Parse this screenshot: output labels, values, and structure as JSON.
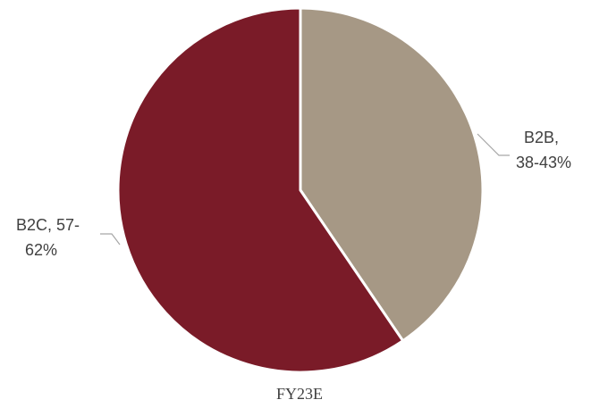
{
  "chart_data": {
    "type": "pie",
    "categories": [
      "B2B",
      "B2C"
    ],
    "series": [
      {
        "values": [
          40.5,
          59.5
        ]
      }
    ],
    "data_labels": [
      [
        "B2B,",
        "38-43%"
      ],
      [
        "B2C, 57-",
        "62%"
      ]
    ],
    "category_label": "FY23E",
    "colors": [
      "#a69885",
      "#7a1b28"
    ],
    "legend": "none"
  }
}
